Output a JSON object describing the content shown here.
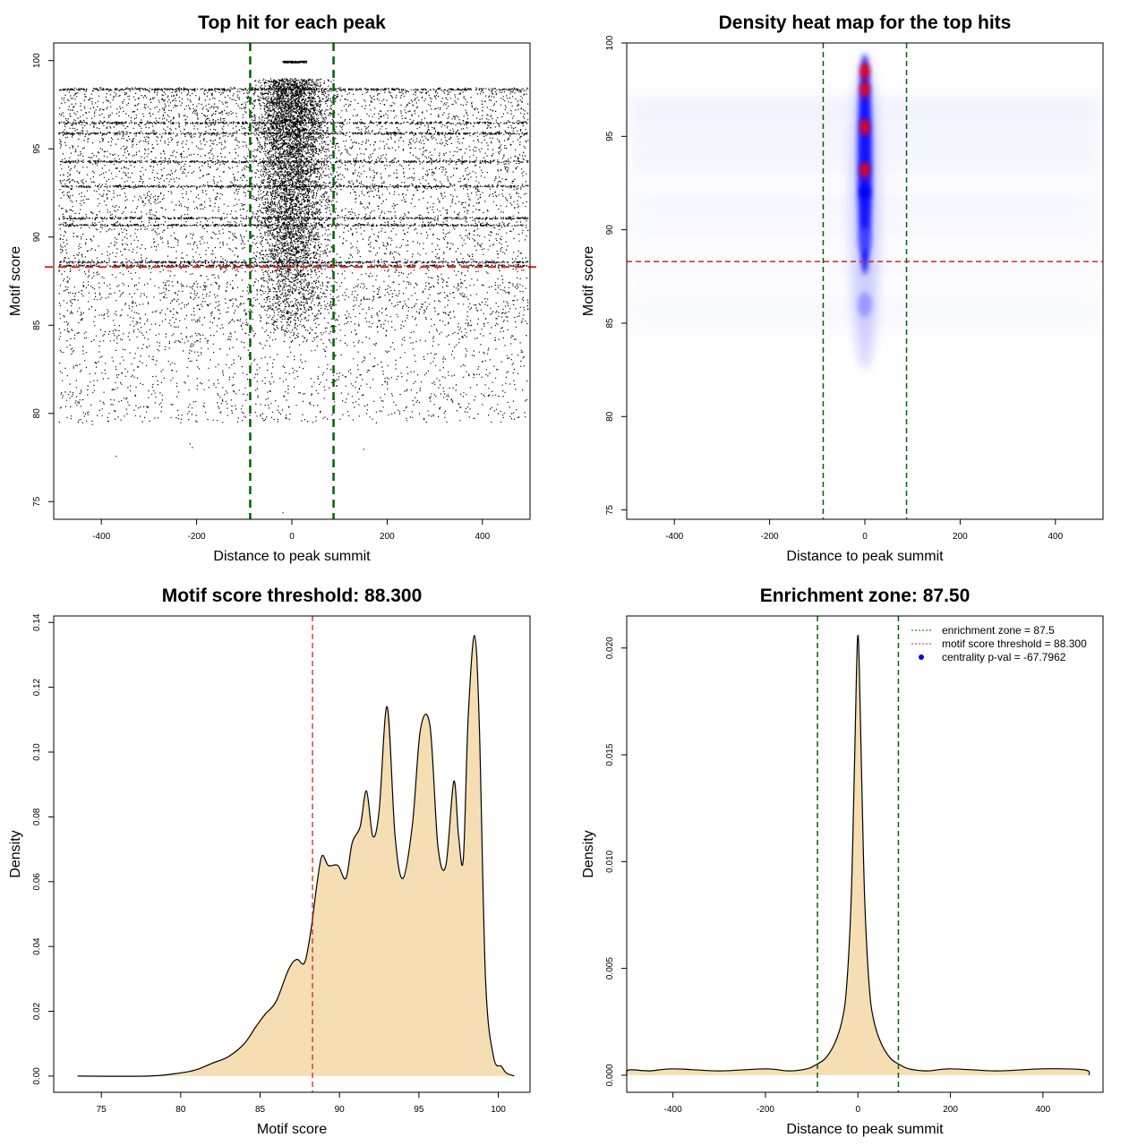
{
  "chart_data": [
    {
      "type": "scatter",
      "title": "Top hit for each peak",
      "xlabel": "Distance to peak summit",
      "ylabel": "Motif score",
      "xlim": [
        -500,
        500
      ],
      "ylim": [
        74,
        101
      ],
      "xticks": [
        -400,
        -200,
        0,
        200,
        400
      ],
      "yticks": [
        75,
        80,
        85,
        90,
        95,
        100
      ],
      "vlines": [
        -87.5,
        87.5
      ],
      "hline": 88.3,
      "line_colors": {
        "vertical": "#006400",
        "horizontal": "#dd2222"
      },
      "point_color": "#000000",
      "points_summary": "dense dots, concentrated near distance 0 and scores 88-99; uniform background across x from -490 to 495 for scores 80-98.5"
    },
    {
      "type": "heatmap",
      "title": "Density heat map for the top hits",
      "xlabel": "Distance to peak summit",
      "ylabel": "Motif score",
      "xlim": [
        -500,
        500
      ],
      "ylim": [
        74.5,
        100
      ],
      "xticks": [
        -400,
        -200,
        0,
        200,
        400
      ],
      "yticks": [
        75,
        80,
        85,
        90,
        95,
        100
      ],
      "vlines": [
        -87.5,
        87.5
      ],
      "hline": 88.3,
      "colors": [
        "#ffffff",
        "#0000ff",
        "#ff0000"
      ],
      "hotspots": [
        {
          "x": 0,
          "y": 98.5,
          "level": "high"
        },
        {
          "x": 0,
          "y": 97.5,
          "level": "high"
        },
        {
          "x": 0,
          "y": 95.5,
          "level": "high"
        },
        {
          "x": 0,
          "y": 93.2,
          "level": "high"
        },
        {
          "x": 0,
          "y": 92.0,
          "level": "medium"
        },
        {
          "x": 0,
          "y": 89.5,
          "level": "low"
        },
        {
          "x": 0,
          "y": 86.0,
          "level": "low"
        }
      ]
    },
    {
      "type": "area",
      "title": "Motif score threshold: 88.300",
      "xlabel": "Motif score",
      "ylabel": "Density",
      "xlim": [
        72,
        102
      ],
      "ylim": [
        -0.005,
        0.142
      ],
      "xticks": [
        75,
        80,
        85,
        90,
        95,
        100
      ],
      "yticks": [
        0.0,
        0.02,
        0.04,
        0.06,
        0.08,
        0.1,
        0.12,
        0.14
      ],
      "ytick_labels": [
        "0.00",
        "0.02",
        "0.04",
        "0.06",
        "0.08",
        "0.10",
        "0.12",
        "0.14"
      ],
      "vline": 88.3,
      "fill": "#f5deb3",
      "x": [
        73.5,
        78,
        80,
        81,
        82,
        83,
        84,
        84.7,
        85.3,
        86,
        86.8,
        87.3,
        87.8,
        88.2,
        88.6,
        88.9,
        89.3,
        89.9,
        90.4,
        90.8,
        91.3,
        91.7,
        92.1,
        92.5,
        93,
        93.5,
        94,
        94.6,
        95.1,
        95.7,
        96.2,
        96.7,
        97.2,
        97.5,
        97.8,
        98.1,
        98.5,
        98.8,
        99.2,
        99.7,
        100.2,
        100.5,
        101.0
      ],
      "y": [
        0.0,
        0.0,
        0.001,
        0.002,
        0.004,
        0.006,
        0.01,
        0.015,
        0.019,
        0.023,
        0.033,
        0.036,
        0.035,
        0.045,
        0.06,
        0.068,
        0.065,
        0.065,
        0.061,
        0.072,
        0.077,
        0.088,
        0.074,
        0.082,
        0.114,
        0.074,
        0.061,
        0.078,
        0.107,
        0.108,
        0.071,
        0.065,
        0.091,
        0.074,
        0.067,
        0.11,
        0.136,
        0.109,
        0.03,
        0.006,
        0.003,
        0.001,
        0.0
      ]
    },
    {
      "type": "area",
      "title": "Enrichment zone: 87.50",
      "xlabel": "Distance to peak summit",
      "ylabel": "Density",
      "xlim": [
        -500,
        530
      ],
      "ylim": [
        -0.0008,
        0.0215
      ],
      "xticks": [
        -400,
        -200,
        0,
        200,
        400
      ],
      "yticks": [
        0.0,
        0.005,
        0.01,
        0.015,
        0.02
      ],
      "ytick_labels": [
        "0.000",
        "0.005",
        "0.010",
        "0.015",
        "0.020"
      ],
      "vlines": [
        -87.5,
        87.5
      ],
      "fill": "#f5deb3",
      "x": [
        -500,
        -495,
        -450,
        -400,
        -300,
        -200,
        -150,
        -110,
        -90,
        -70,
        -50,
        -35,
        -25,
        -15,
        -8,
        -3,
        0,
        3,
        8,
        15,
        25,
        35,
        50,
        70,
        90,
        110,
        150,
        200,
        300,
        400,
        490,
        500
      ],
      "y": [
        0.0,
        0.00025,
        0.0002,
        0.0003,
        0.0002,
        0.0003,
        0.0002,
        0.0003,
        0.0005,
        0.0008,
        0.0015,
        0.0025,
        0.004,
        0.008,
        0.014,
        0.019,
        0.0206,
        0.019,
        0.014,
        0.008,
        0.004,
        0.0025,
        0.0015,
        0.0008,
        0.0005,
        0.0003,
        0.0002,
        0.0003,
        0.0002,
        0.0003,
        0.00025,
        0.0
      ],
      "legend": {
        "position": "top-right",
        "entries": [
          {
            "label": "enrichment zone = 87.5",
            "color": "#006400",
            "style": "dotted"
          },
          {
            "label": "motif score threshold = 88.300",
            "color": "#dd2222",
            "style": "dotted"
          },
          {
            "label": "centrality p-val = -67.7962",
            "color": "#0000ff",
            "style": "point"
          }
        ]
      }
    }
  ]
}
